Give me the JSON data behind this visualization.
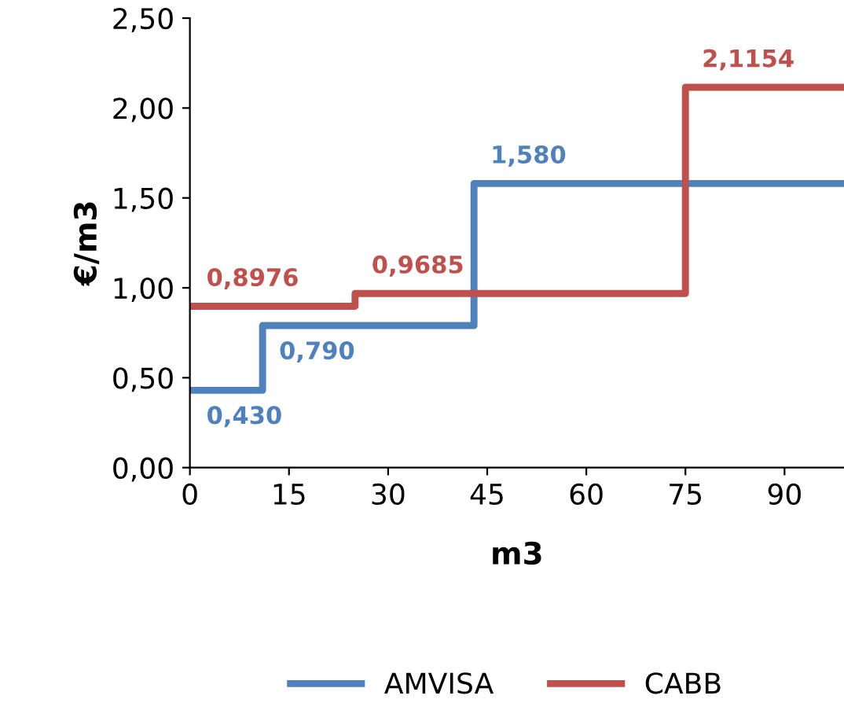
{
  "chart_data": {
    "type": "step",
    "xlabel": "m3",
    "ylabel": "€/m3",
    "xlim": [
      0,
      99
    ],
    "xticks": [
      0,
      15,
      30,
      45,
      60,
      75,
      90
    ],
    "ylim": [
      0,
      2.5
    ],
    "yticks": [
      {
        "value": 0,
        "label": "0,00"
      },
      {
        "value": 0.5,
        "label": "0,50"
      },
      {
        "value": 1,
        "label": "1,00"
      },
      {
        "value": 1.5,
        "label": "1,50"
      },
      {
        "value": 2,
        "label": "2,00"
      },
      {
        "value": 2.5,
        "label": "2,50"
      }
    ],
    "grid": false,
    "legend": "bottom",
    "series": [
      {
        "name": "AMVISA",
        "color": "#4f81bd",
        "x": [
          0,
          11,
          43,
          99
        ],
        "values": [
          0.43,
          0.79,
          1.58,
          1.58
        ],
        "value_labels": [
          "0,430",
          "0,790",
          "1,580",
          null
        ]
      },
      {
        "name": "CABB",
        "color": "#c0504d",
        "x": [
          0,
          25,
          75,
          99
        ],
        "values": [
          0.8976,
          0.9685,
          2.1154,
          2.1154
        ],
        "value_labels": [
          "0,8976",
          "0,9685",
          "2,1154",
          null
        ]
      }
    ]
  }
}
